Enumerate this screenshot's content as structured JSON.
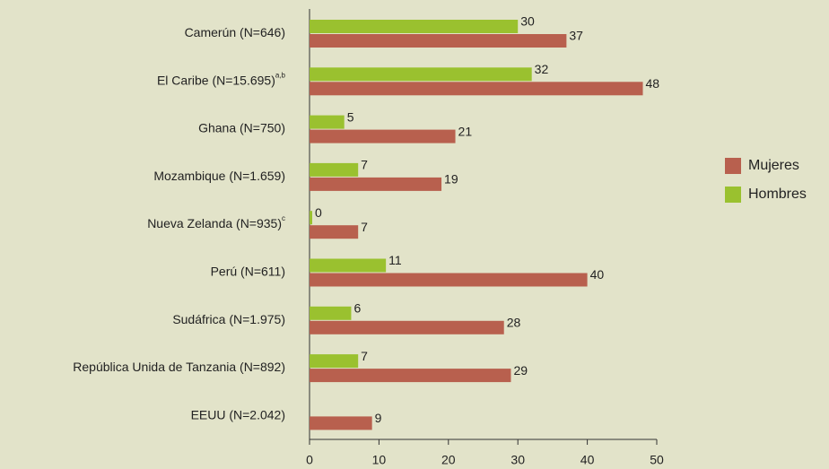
{
  "chart_data": {
    "type": "bar",
    "orientation": "horizontal",
    "categories": [
      "Camerún (N=646)",
      "El Caribe (N=15.695)",
      "Ghana (N=750)",
      "Mozambique (N=1.659)",
      "Nueva Zelanda (N=935)",
      "Perú (N=611)",
      "Sudáfrica (N=1.975)",
      "República Unida de Tanzania (N=892)",
      "EEUU (N=2.042)"
    ],
    "category_notes": [
      null,
      "a,b",
      null,
      null,
      "c",
      null,
      null,
      null,
      null
    ],
    "series": [
      {
        "name": "Mujeres",
        "color": "#b8604e",
        "values": [
          37,
          48,
          21,
          19,
          7,
          40,
          28,
          29,
          9
        ]
      },
      {
        "name": "Hombres",
        "color": "#9ac12f",
        "values": [
          30,
          32,
          5,
          7,
          0,
          11,
          6,
          7,
          null
        ]
      }
    ],
    "xlim": [
      0,
      50
    ],
    "xticks": [
      0,
      10,
      20,
      30,
      40,
      50
    ],
    "legend": "right"
  }
}
